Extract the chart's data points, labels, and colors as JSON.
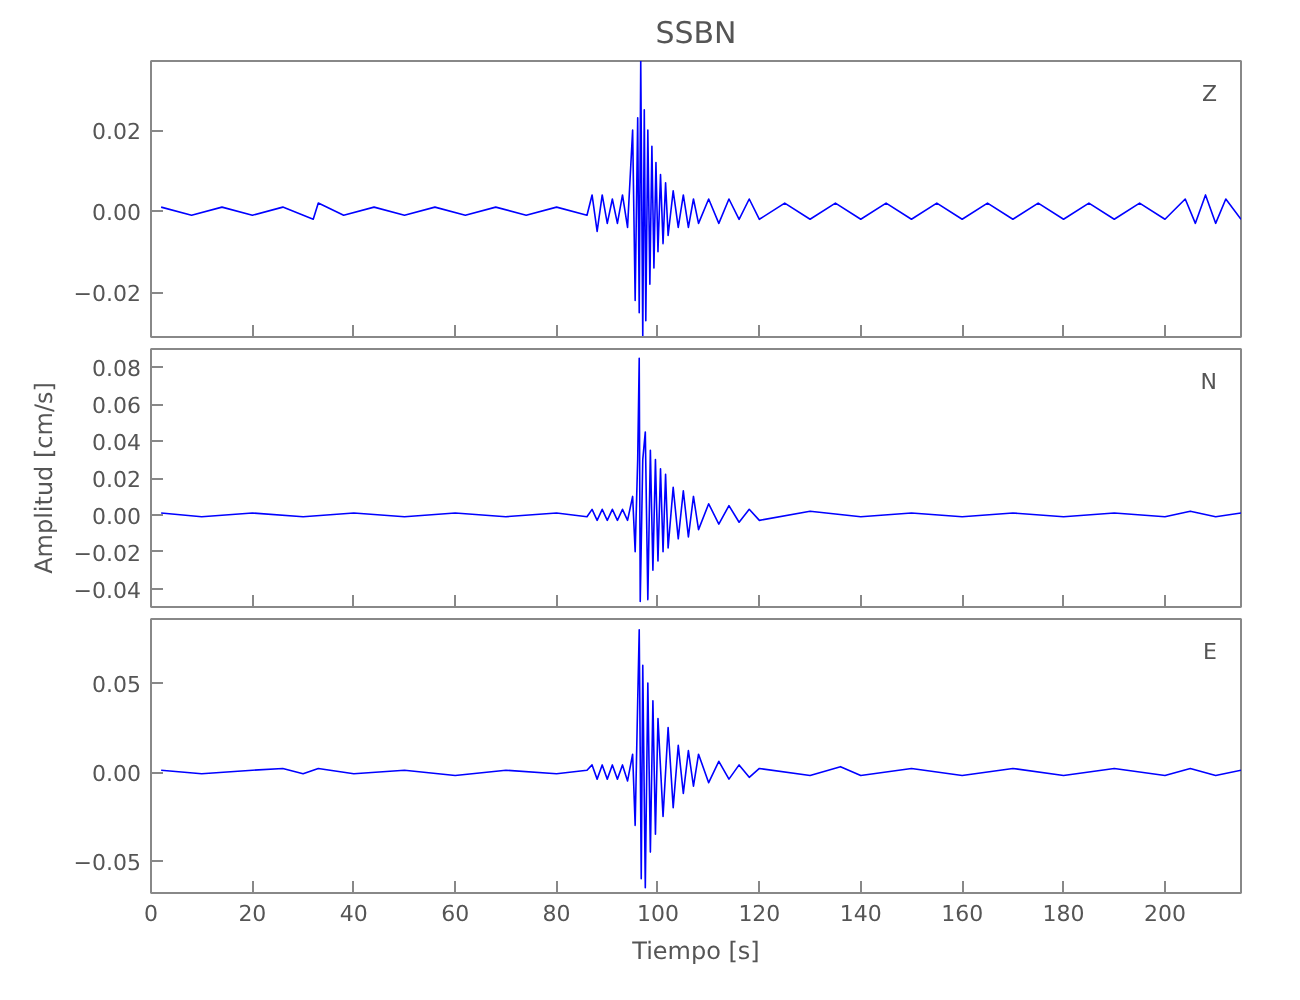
{
  "chart_data": [
    {
      "type": "line",
      "title": "SSBN",
      "xlim": [
        0,
        215
      ],
      "xticks": [
        0,
        20,
        40,
        60,
        80,
        100,
        120,
        140,
        160,
        180,
        200
      ],
      "ylim": [
        -0.031,
        0.037
      ],
      "yticks": [
        {
          "value": -0.02,
          "label": "−0.02"
        },
        {
          "value": 0,
          "label": "0.00"
        },
        {
          "value": 0.02,
          "label": "0.02"
        }
      ],
      "tick_labels": "y",
      "grid": false,
      "series": [
        {
          "name": "Z",
          "color": "#0000ff",
          "x": [
            2,
            8,
            14,
            20,
            26,
            32,
            33,
            38,
            44,
            50,
            56,
            62,
            68,
            74,
            80,
            86,
            87,
            88,
            89,
            90,
            91,
            92,
            93,
            94,
            95,
            95.5,
            96,
            96.3,
            96.6,
            97,
            97.3,
            97.6,
            98,
            98.4,
            98.8,
            99.2,
            99.6,
            100,
            100.5,
            101,
            101.5,
            102,
            103,
            104,
            105,
            106,
            107,
            108,
            110,
            112,
            114,
            116,
            118,
            120,
            125,
            130,
            135,
            140,
            145,
            150,
            155,
            160,
            165,
            170,
            175,
            180,
            185,
            190,
            195,
            200,
            204,
            206,
            208,
            210,
            212,
            215
          ],
          "values": [
            0.001,
            -0.001,
            0.001,
            -0.001,
            0.001,
            -0.002,
            0.002,
            -0.001,
            0.001,
            -0.001,
            0.001,
            -0.001,
            0.001,
            -0.001,
            0.001,
            -0.001,
            0.004,
            -0.005,
            0.004,
            -0.003,
            0.003,
            -0.003,
            0.004,
            -0.004,
            0.02,
            -0.022,
            0.023,
            -0.025,
            0.037,
            -0.031,
            0.025,
            -0.027,
            0.02,
            -0.018,
            0.016,
            -0.014,
            0.012,
            -0.01,
            0.009,
            -0.008,
            0.007,
            -0.006,
            0.005,
            -0.004,
            0.004,
            -0.004,
            0.003,
            -0.003,
            0.003,
            -0.003,
            0.003,
            -0.002,
            0.003,
            -0.002,
            0.002,
            -0.002,
            0.002,
            -0.002,
            0.002,
            -0.002,
            0.002,
            -0.002,
            0.002,
            -0.002,
            0.002,
            -0.002,
            0.002,
            -0.002,
            0.002,
            -0.002,
            0.003,
            -0.003,
            0.004,
            -0.003,
            0.003,
            -0.002
          ]
        }
      ]
    },
    {
      "type": "line",
      "ylabel": "Amplitud [cm/s]",
      "xlim": [
        0,
        215
      ],
      "xticks": [
        0,
        20,
        40,
        60,
        80,
        100,
        120,
        140,
        160,
        180,
        200
      ],
      "ylim": [
        -0.05,
        0.09
      ],
      "yticks": [
        {
          "value": -0.04,
          "label": "−0.04"
        },
        {
          "value": -0.02,
          "label": "−0.02"
        },
        {
          "value": 0,
          "label": "0.00"
        },
        {
          "value": 0.02,
          "label": "0.02"
        },
        {
          "value": 0.04,
          "label": "0.04"
        },
        {
          "value": 0.06,
          "label": "0.06"
        },
        {
          "value": 0.08,
          "label": "0.08"
        }
      ],
      "tick_labels": "y",
      "grid": false,
      "series": [
        {
          "name": "N",
          "color": "#0000ff",
          "x": [
            2,
            10,
            20,
            30,
            40,
            50,
            60,
            70,
            80,
            86,
            87,
            88,
            89,
            90,
            91,
            92,
            93,
            94,
            95,
            95.5,
            96,
            96.3,
            96.5,
            97,
            97.5,
            98,
            98.5,
            99,
            99.5,
            100,
            100.5,
            101,
            101.5,
            102,
            103,
            104,
            105,
            106,
            107,
            108,
            110,
            112,
            114,
            116,
            118,
            120,
            130,
            140,
            150,
            160,
            170,
            180,
            190,
            200,
            205,
            210,
            215
          ],
          "values": [
            0.001,
            -0.001,
            0.001,
            -0.001,
            0.001,
            -0.001,
            0.001,
            -0.001,
            0.001,
            -0.001,
            0.003,
            -0.003,
            0.003,
            -0.003,
            0.003,
            -0.003,
            0.003,
            -0.003,
            0.01,
            -0.02,
            0.03,
            0.085,
            -0.047,
            0.03,
            0.045,
            -0.046,
            0.035,
            -0.03,
            0.03,
            -0.025,
            0.025,
            -0.02,
            0.022,
            -0.018,
            0.015,
            -0.013,
            0.013,
            -0.012,
            0.01,
            -0.008,
            0.006,
            -0.005,
            0.005,
            -0.004,
            0.003,
            -0.003,
            0.002,
            -0.001,
            0.001,
            -0.001,
            0.001,
            -0.001,
            0.001,
            -0.001,
            0.002,
            -0.001,
            0.001
          ]
        }
      ]
    },
    {
      "type": "line",
      "xlabel": "Tiempo [s]",
      "xlim": [
        0,
        215
      ],
      "xticks": [
        0,
        20,
        40,
        60,
        80,
        100,
        120,
        140,
        160,
        180,
        200
      ],
      "ylim": [
        -0.068,
        0.086
      ],
      "yticks": [
        {
          "value": -0.05,
          "label": "−0.05"
        },
        {
          "value": 0,
          "label": "0.00"
        },
        {
          "value": 0.05,
          "label": "0.05"
        }
      ],
      "grid": false,
      "series": [
        {
          "name": "E",
          "color": "#0000ff",
          "x": [
            2,
            10,
            20,
            26,
            30,
            33,
            40,
            50,
            60,
            70,
            80,
            86,
            87,
            88,
            89,
            90,
            91,
            92,
            93,
            94,
            95,
            95.5,
            96,
            96.3,
            96.7,
            97,
            97.5,
            98,
            98.5,
            99,
            99.5,
            100,
            101,
            102,
            103,
            104,
            105,
            106,
            107,
            108,
            110,
            112,
            114,
            116,
            118,
            120,
            130,
            136,
            140,
            150,
            160,
            170,
            180,
            190,
            200,
            205,
            210,
            215
          ],
          "values": [
            0.001,
            -0.001,
            0.001,
            0.002,
            -0.001,
            0.002,
            -0.001,
            0.001,
            -0.002,
            0.001,
            -0.001,
            0.001,
            0.004,
            -0.004,
            0.004,
            -0.004,
            0.004,
            -0.004,
            0.004,
            -0.005,
            0.01,
            -0.03,
            0.04,
            0.08,
            -0.06,
            0.06,
            -0.065,
            0.05,
            -0.045,
            0.04,
            -0.035,
            0.03,
            -0.025,
            0.025,
            -0.02,
            0.015,
            -0.012,
            0.012,
            -0.008,
            0.01,
            -0.006,
            0.006,
            -0.004,
            0.004,
            -0.003,
            0.002,
            -0.002,
            0.003,
            -0.002,
            0.002,
            -0.002,
            0.002,
            -0.002,
            0.002,
            -0.002,
            0.002,
            -0.002,
            0.001
          ]
        }
      ]
    }
  ]
}
